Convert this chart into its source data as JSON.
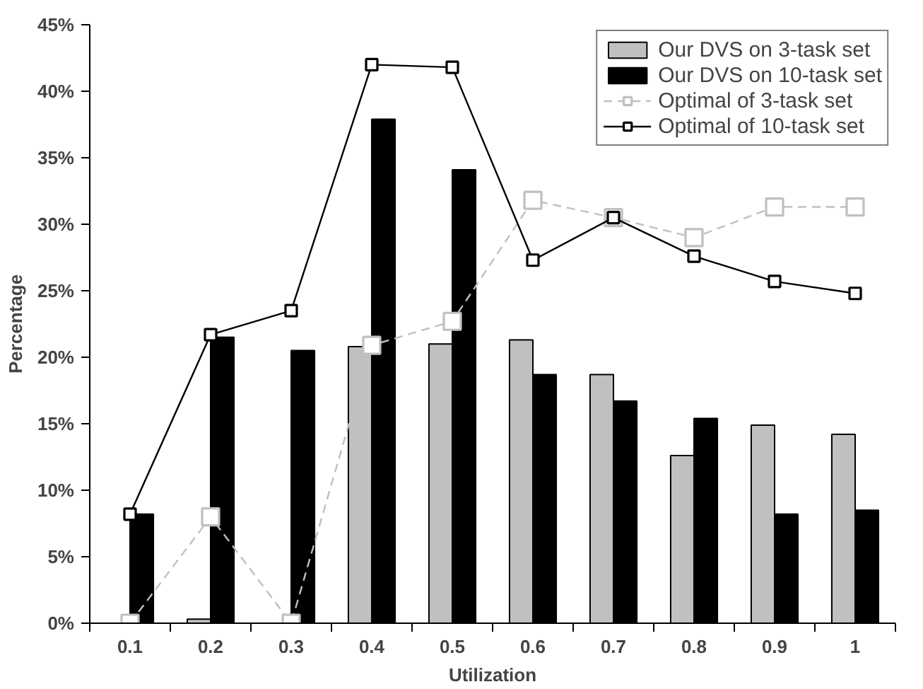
{
  "chart_data": {
    "type": "bar",
    "xlabel": "Utilization",
    "ylabel": "Percentage",
    "categories": [
      "0.1",
      "0.2",
      "0.3",
      "0.4",
      "0.5",
      "0.6",
      "0.7",
      "0.8",
      "0.9",
      "1"
    ],
    "ylim": [
      0,
      45
    ],
    "yticks": [
      {
        "value": 0,
        "label": "0%"
      },
      {
        "value": 5,
        "label": "5%"
      },
      {
        "value": 10,
        "label": "10%"
      },
      {
        "value": 15,
        "label": "15%"
      },
      {
        "value": 20,
        "label": "20%"
      },
      {
        "value": 25,
        "label": "25%"
      },
      {
        "value": 30,
        "label": "30%"
      },
      {
        "value": 35,
        "label": "35%"
      },
      {
        "value": 40,
        "label": "40%"
      },
      {
        "value": 45,
        "label": "45%"
      }
    ],
    "grid": false,
    "legend": "top right",
    "series": [
      {
        "name": "Our DVS on 3-task set",
        "color": "#c0c0c0",
        "values": [
          null,
          0.3,
          null,
          20.8,
          21.0,
          21.3,
          18.7,
          12.6,
          14.9,
          14.2
        ]
      },
      {
        "name": "Our DVS on 10-task set",
        "color": "#000000",
        "values": [
          8.2,
          21.5,
          20.5,
          37.9,
          34.1,
          18.7,
          16.7,
          15.4,
          8.2,
          8.5
        ]
      },
      {
        "name": "Optimal of 3-task set",
        "type": "line",
        "color": "#c0c0c0",
        "line_style": "dashed",
        "marker": "square",
        "values": [
          0,
          8.0,
          0,
          20.9,
          22.7,
          31.8,
          30.5,
          29.0,
          31.3,
          31.3
        ]
      },
      {
        "name": "Optimal of 10-task set",
        "type": "line",
        "color": "#000000",
        "line_style": "solid",
        "marker": "square",
        "values": [
          8.2,
          21.7,
          23.5,
          42.0,
          41.8,
          27.3,
          30.5,
          27.6,
          25.7,
          24.8
        ]
      }
    ]
  }
}
